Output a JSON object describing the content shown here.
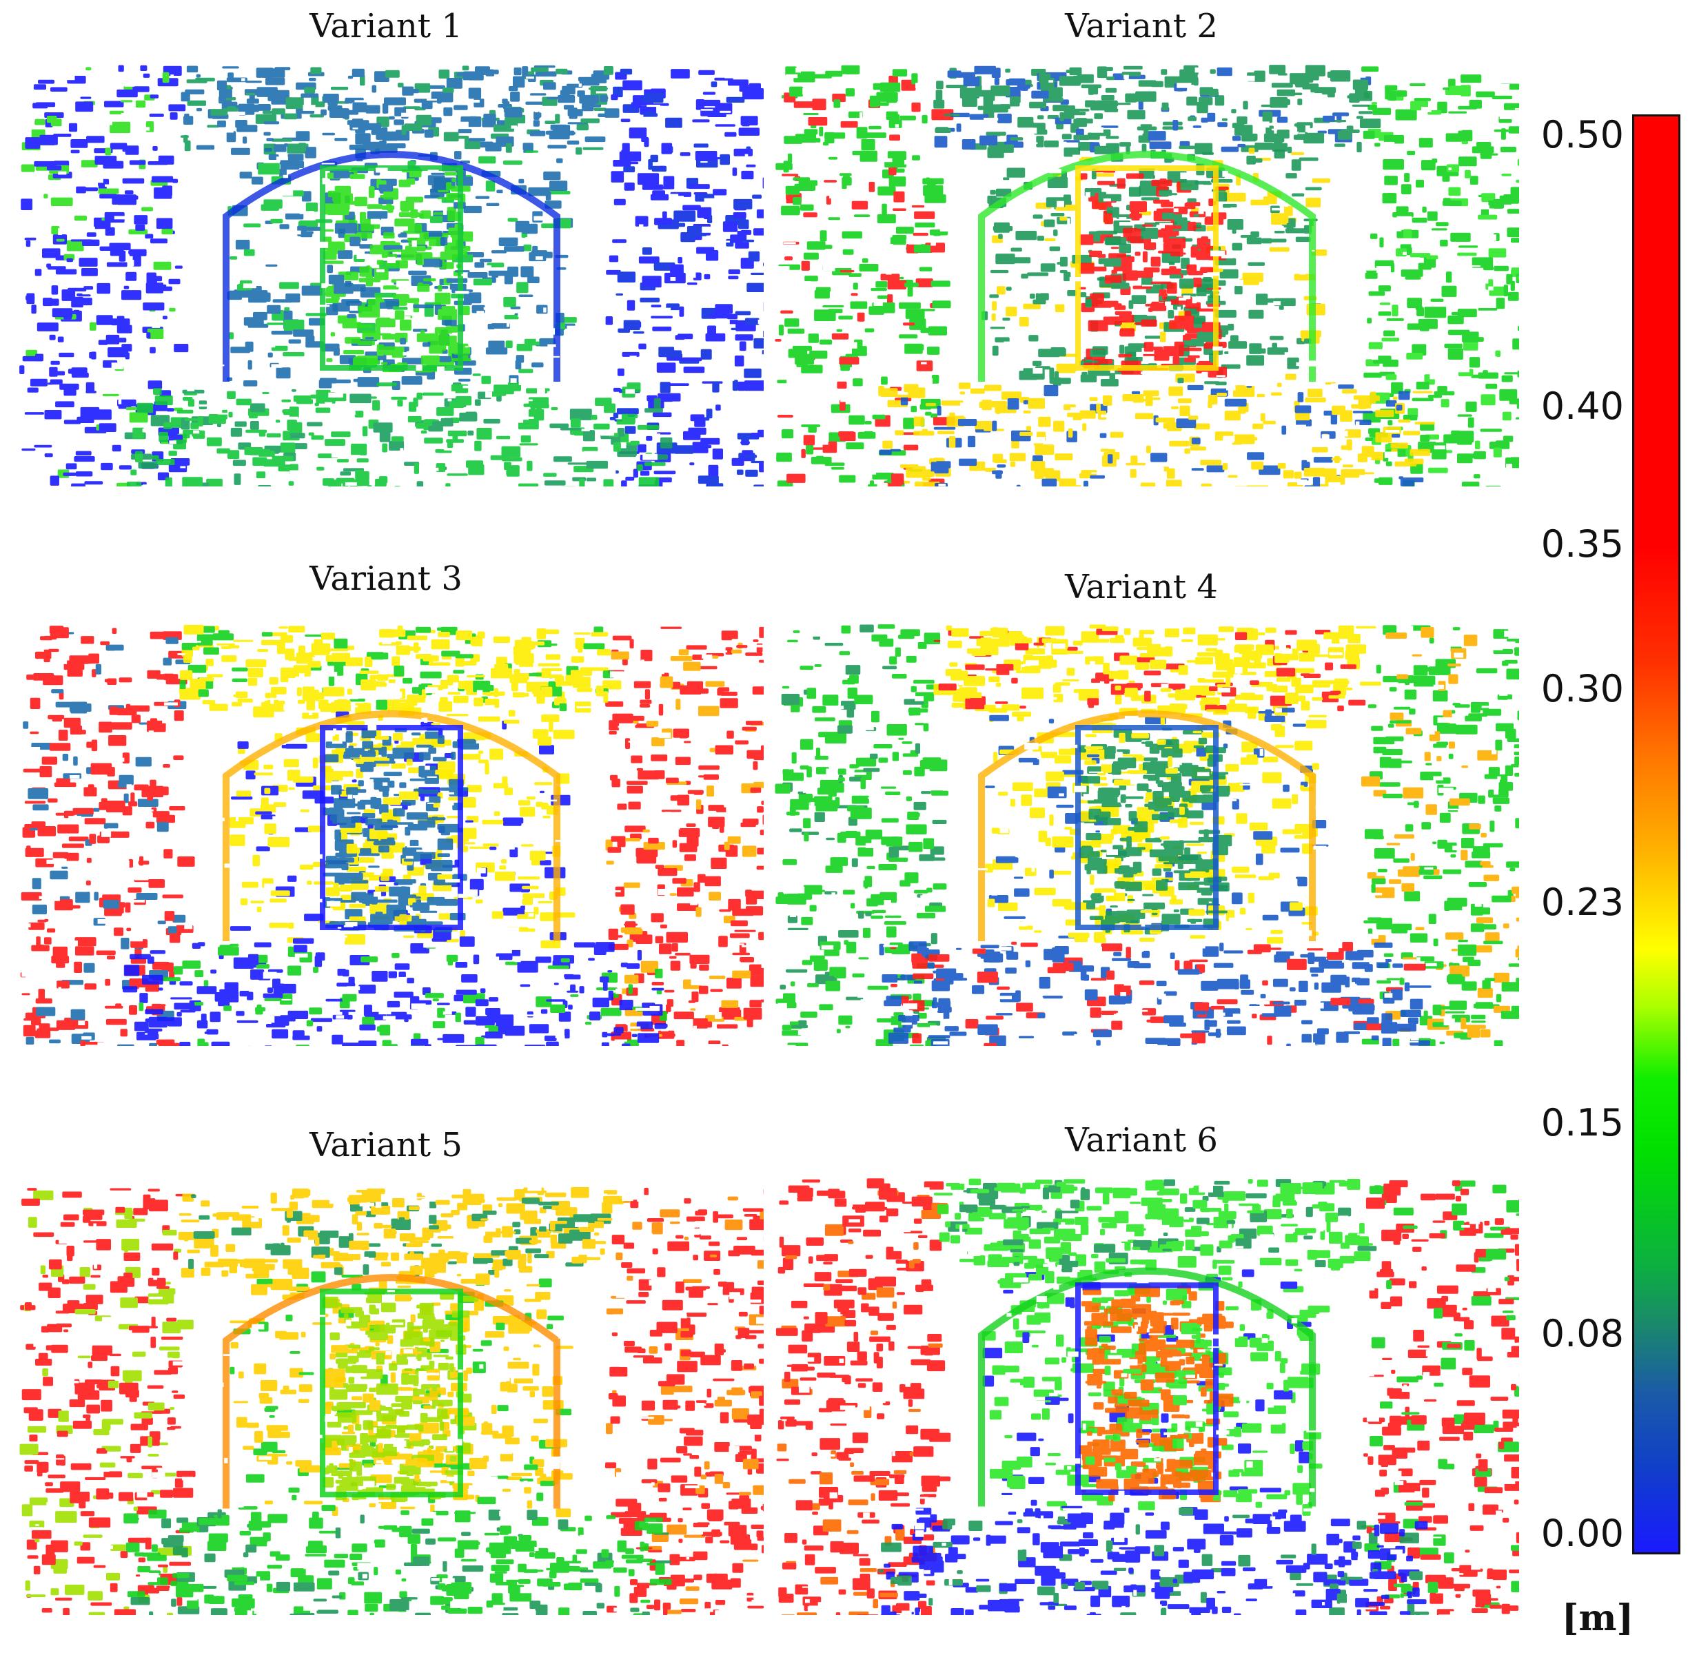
{
  "panels": [
    {
      "title": "Variant 1",
      "palette": [
        "#1a1aff",
        "#0d2ee0",
        "#1f6fb0",
        "#1aa060",
        "#14c83a",
        "#2ee01e"
      ]
    },
    {
      "title": "Variant 2",
      "palette": [
        "#14d21e",
        "#2ee82a",
        "#1e9a5a",
        "#1a5ac8",
        "#ffe000",
        "#ff1a1a"
      ]
    },
    {
      "title": "Variant 3",
      "palette": [
        "#ff1a1a",
        "#ffb000",
        "#ffee00",
        "#14d21e",
        "#1a1aff",
        "#1f6fb0"
      ]
    },
    {
      "title": "Variant 4",
      "palette": [
        "#14d21e",
        "#ffb000",
        "#ffee00",
        "#ff1a1a",
        "#1a5ac8",
        "#1e9a5a"
      ]
    },
    {
      "title": "Variant 5",
      "palette": [
        "#ff1a1a",
        "#ff8c00",
        "#ffd000",
        "#1e9a5a",
        "#14d21e",
        "#a0e000"
      ]
    },
    {
      "title": "Variant 6",
      "palette": [
        "#ff1a1a",
        "#14d21e",
        "#2ee82a",
        "#1e9a5a",
        "#1a1aff",
        "#ff6a00"
      ]
    }
  ],
  "colorbar": {
    "ticks": [
      "0.50",
      "0.40",
      "0.35",
      "0.30",
      "0.23",
      "0.15",
      "0.08",
      "0.00"
    ],
    "unit": "[m]",
    "low_color": "#1a1aff",
    "high_color": "#ff0000"
  }
}
